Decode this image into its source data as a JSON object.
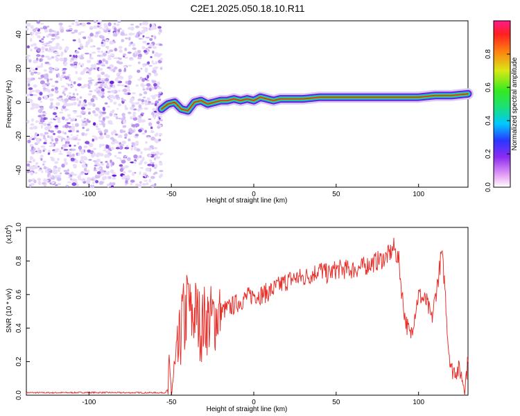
{
  "title": "C2E1.2025.050.18.10.R11",
  "chart_data": [
    {
      "type": "heatmap",
      "xlabel": "Height of straight line (km)",
      "ylabel": "Frequency (Hz)",
      "xlim": [
        -138,
        130
      ],
      "ylim": [
        -50,
        48
      ],
      "xticks": [
        -100,
        -50,
        0,
        50,
        100
      ],
      "yticks": [
        -40,
        -20,
        0,
        20,
        40
      ],
      "noise_region_x": [
        -138,
        -56
      ],
      "signal_trace": {
        "x": [
          -56,
          -52,
          -48,
          -44,
          -40,
          -36,
          -32,
          -28,
          -24,
          -20,
          -16,
          -12,
          -8,
          -4,
          0,
          4,
          8,
          12,
          16,
          20,
          30,
          40,
          50,
          60,
          70,
          80,
          90,
          100,
          110,
          120,
          130
        ],
        "y": [
          -4,
          -1,
          0,
          -4,
          -5,
          0,
          1,
          -1,
          0,
          1,
          1,
          2,
          1,
          2,
          1,
          3,
          2,
          1,
          2,
          2,
          2,
          3,
          3,
          3,
          3,
          3,
          3,
          3,
          4,
          4,
          5
        ]
      },
      "colorbar": {
        "label": "Normalized spectral amplitude",
        "range": [
          0,
          1
        ],
        "ticks": [
          0.0,
          0.2,
          0.4,
          0.6,
          0.8
        ]
      }
    },
    {
      "type": "line",
      "xlabel": "Height of straight line (km)",
      "ylabel": "SNR (10 * v/v)",
      "yscale_label": "(x10",
      "yscale_exp": "4",
      "yscale_close": ")",
      "xlim": [
        -138,
        130
      ],
      "ylim": [
        0,
        1.0
      ],
      "xticks": [
        -100,
        -50,
        0,
        50,
        100
      ],
      "yticks": [
        0.0,
        0.2,
        0.4,
        0.6,
        0.8,
        1.0
      ],
      "color": "#e8312c",
      "series": [
        {
          "x": [
            -138,
            -120,
            -100,
            -80,
            -60,
            -54,
            -50,
            -47,
            -45,
            -43,
            -42,
            -40,
            -38,
            -35,
            -32,
            -30,
            -25,
            -20,
            -15,
            -10,
            -5,
            0,
            5,
            10,
            15,
            20,
            25,
            30,
            35,
            40,
            45,
            50,
            55,
            60,
            65,
            70,
            75,
            80,
            83,
            85,
            88,
            90,
            92,
            95,
            100,
            105,
            108,
            112,
            114,
            116,
            118,
            120,
            125,
            128,
            130
          ],
          "y": [
            0.015,
            0.015,
            0.016,
            0.015,
            0.015,
            0.015,
            0.05,
            0.15,
            0.3,
            0.5,
            0.4,
            0.6,
            0.45,
            0.5,
            0.4,
            0.45,
            0.45,
            0.5,
            0.52,
            0.55,
            0.58,
            0.6,
            0.6,
            0.62,
            0.65,
            0.68,
            0.7,
            0.7,
            0.72,
            0.75,
            0.72,
            0.75,
            0.75,
            0.75,
            0.76,
            0.78,
            0.8,
            0.82,
            0.85,
            0.88,
            0.8,
            0.6,
            0.45,
            0.35,
            0.6,
            0.55,
            0.45,
            0.7,
            0.85,
            0.65,
            0.3,
            0.15,
            0.15,
            0.05,
            0.2
          ]
        }
      ]
    }
  ]
}
